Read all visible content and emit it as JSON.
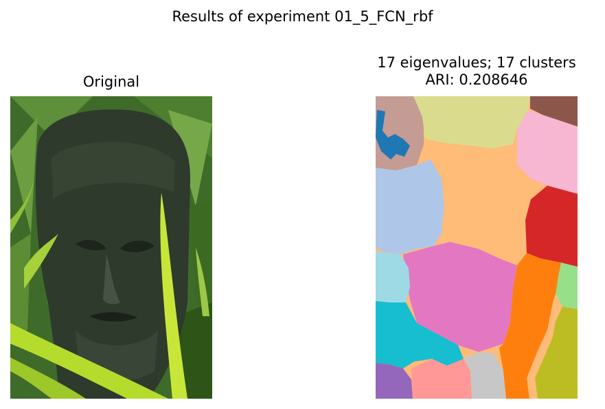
{
  "figure": {
    "suptitle": "Results of experiment 01_5_FCN_rbf"
  },
  "panels": {
    "original": {
      "title": "Original",
      "subject": "stone-carved-face-among-green-leaves"
    },
    "segmentation": {
      "title_line1": "17 eigenvalues; 17 clusters",
      "title_line2": "ARI: 0.208646",
      "eigenvalues": 17,
      "clusters": 17,
      "ari": 0.208646
    }
  },
  "chart_data": [
    {
      "type": "image",
      "title": "Original",
      "xlabel": "",
      "ylabel": "",
      "axis": "off"
    },
    {
      "type": "heatmap",
      "title": "17 eigenvalues; 17 clusters\nARI: 0.208646",
      "xlabel": "",
      "ylabel": "",
      "axis": "off",
      "n_clusters": 17,
      "cluster_colors": [
        "#1f77b4",
        "#aec7e8",
        "#ff7f0e",
        "#ffbb78",
        "#2ca02c",
        "#98df8a",
        "#d62728",
        "#ff9896",
        "#9467bd",
        "#c5b0d5",
        "#8c564b",
        "#c49c94",
        "#e377c2",
        "#f7b6d2",
        "#bcbd22",
        "#dbdb8d",
        "#17becf",
        "#9edae5",
        "#c7c7c7"
      ],
      "ari": 0.208646
    }
  ]
}
